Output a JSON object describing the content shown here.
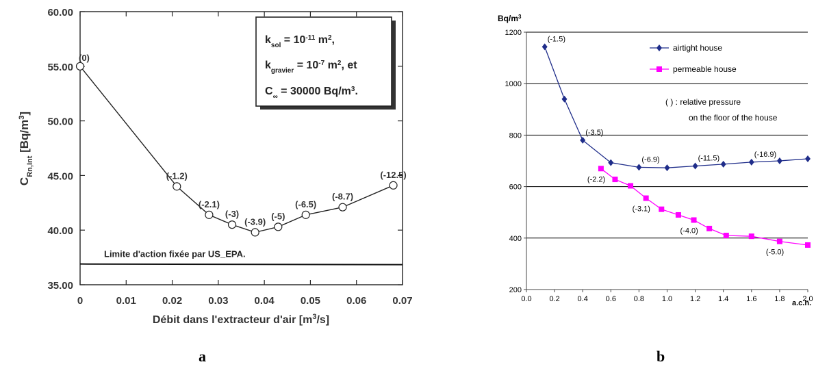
{
  "chart_data": [
    {
      "panel_label": "a",
      "type": "line",
      "xlabel_text": "Débit dans l'extracteur d'air [m",
      "xlabel_sup": "3",
      "xlabel_tail": "/s]",
      "ylabel_main": "C",
      "ylabel_sub": "Rn,Int",
      "ylabel_mid": " [Bq/m",
      "ylabel_sup": "3",
      "ylabel_tail": "]",
      "xlim": [
        0,
        0.07
      ],
      "ylim": [
        35,
        60
      ],
      "x_ticks": [
        "0",
        "0.01",
        "0.02",
        "0.03",
        "0.04",
        "0.05",
        "0.06",
        "0.07"
      ],
      "y_ticks": [
        "35.00",
        "40.00",
        "45.00",
        "50.00",
        "55.00",
        "60.00"
      ],
      "x_tick_values": [
        0,
        0.01,
        0.02,
        0.03,
        0.04,
        0.05,
        0.06,
        0.07
      ],
      "y_tick_values": [
        35,
        40,
        45,
        50,
        55,
        60
      ],
      "series": [
        {
          "x": [
            0,
            0.021,
            0.028,
            0.033,
            0.038,
            0.043,
            0.049,
            0.057,
            0.068
          ],
          "y": [
            55.0,
            44.0,
            41.4,
            40.5,
            39.8,
            40.3,
            41.4,
            42.1,
            44.1
          ],
          "labels": [
            "(0)",
            "(-1.2)",
            "(-2.1)",
            "(-3)",
            "(-3.9)",
            "(-5)",
            "(-6.5)",
            "(-8.7)",
            "(-12.5)"
          ]
        }
      ],
      "reference_line": {
        "y": 36.9,
        "label": "Limite d'action fixée par US_EPA."
      },
      "annotation_box": {
        "k_sol": "k",
        "k_sol_sub": "sol",
        "k_sol_val": " = 10",
        "k_sol_exp": "-11",
        "k_sol_unit": " m",
        "k_sol_unit_exp": "2",
        "k_sol_tail": ",",
        "k_grav": "k",
        "k_grav_sub": "gravier",
        "k_grav_val": " = 10",
        "k_grav_exp": "-7",
        "k_grav_unit": " m",
        "k_grav_unit_exp": "2",
        "k_grav_tail": ", et",
        "c_inf": "C",
        "c_inf_sub": "∞",
        "c_inf_val": " = 30000  Bq/m",
        "c_inf_exp": "3",
        "c_inf_tail": "."
      }
    },
    {
      "panel_label": "b",
      "type": "line",
      "y_unit_main": "Bq/m",
      "y_unit_sup": "3",
      "xlabel": "a.c.h.",
      "xlim": [
        0,
        2.0
      ],
      "ylim": [
        200,
        1200
      ],
      "x_ticks": [
        "0.0",
        "0.2",
        "0.4",
        "0.6",
        "0.8",
        "1.0",
        "1.2",
        "1.4",
        "1.6",
        "1.8",
        "2.0"
      ],
      "y_ticks": [
        "200",
        "400",
        "600",
        "800",
        "1000",
        "1200"
      ],
      "x_tick_values": [
        0,
        0.2,
        0.4,
        0.6,
        0.8,
        1.0,
        1.2,
        1.4,
        1.6,
        1.8,
        2.0
      ],
      "y_tick_values": [
        200,
        400,
        600,
        800,
        1000,
        1200
      ],
      "grid": "horizontal",
      "legend_position": "top-right",
      "series": [
        {
          "name": "airtight house",
          "color": "#1f2d8a",
          "marker": "diamond",
          "x": [
            0.13,
            0.27,
            0.4,
            0.6,
            0.8,
            1.0,
            1.2,
            1.4,
            1.6,
            1.8,
            2.0
          ],
          "y": [
            1143,
            940,
            780,
            693,
            675,
            673,
            680,
            687,
            695,
            700,
            708
          ],
          "labels": [
            {
              "x": 0.13,
              "text": "(-1.5)"
            },
            {
              "x": 0.4,
              "text": "(-3.5)"
            },
            {
              "x": 0.8,
              "text": "(-6.9)"
            },
            {
              "x": 1.2,
              "text": "(-11.5)"
            },
            {
              "x": 1.6,
              "text": "(-16.9)"
            }
          ]
        },
        {
          "name": "permeable house",
          "color": "#ff00ff",
          "marker": "square",
          "x": [
            0.53,
            0.63,
            0.74,
            0.85,
            0.96,
            1.08,
            1.19,
            1.3,
            1.42,
            1.6,
            1.8,
            2.0
          ],
          "y": [
            670,
            628,
            603,
            555,
            512,
            490,
            470,
            437,
            410,
            407,
            387,
            373
          ],
          "labels": [
            {
              "x": 0.53,
              "text": "(-2.2)"
            },
            {
              "x": 0.85,
              "text": "(-3.1)"
            },
            {
              "x": 1.19,
              "text": "(-4.0)"
            },
            {
              "x": 1.8,
              "text": "(-5.0)"
            }
          ]
        }
      ],
      "note_line1": "( ) : relative pressure",
      "note_line2": "on the floor of the house"
    }
  ]
}
